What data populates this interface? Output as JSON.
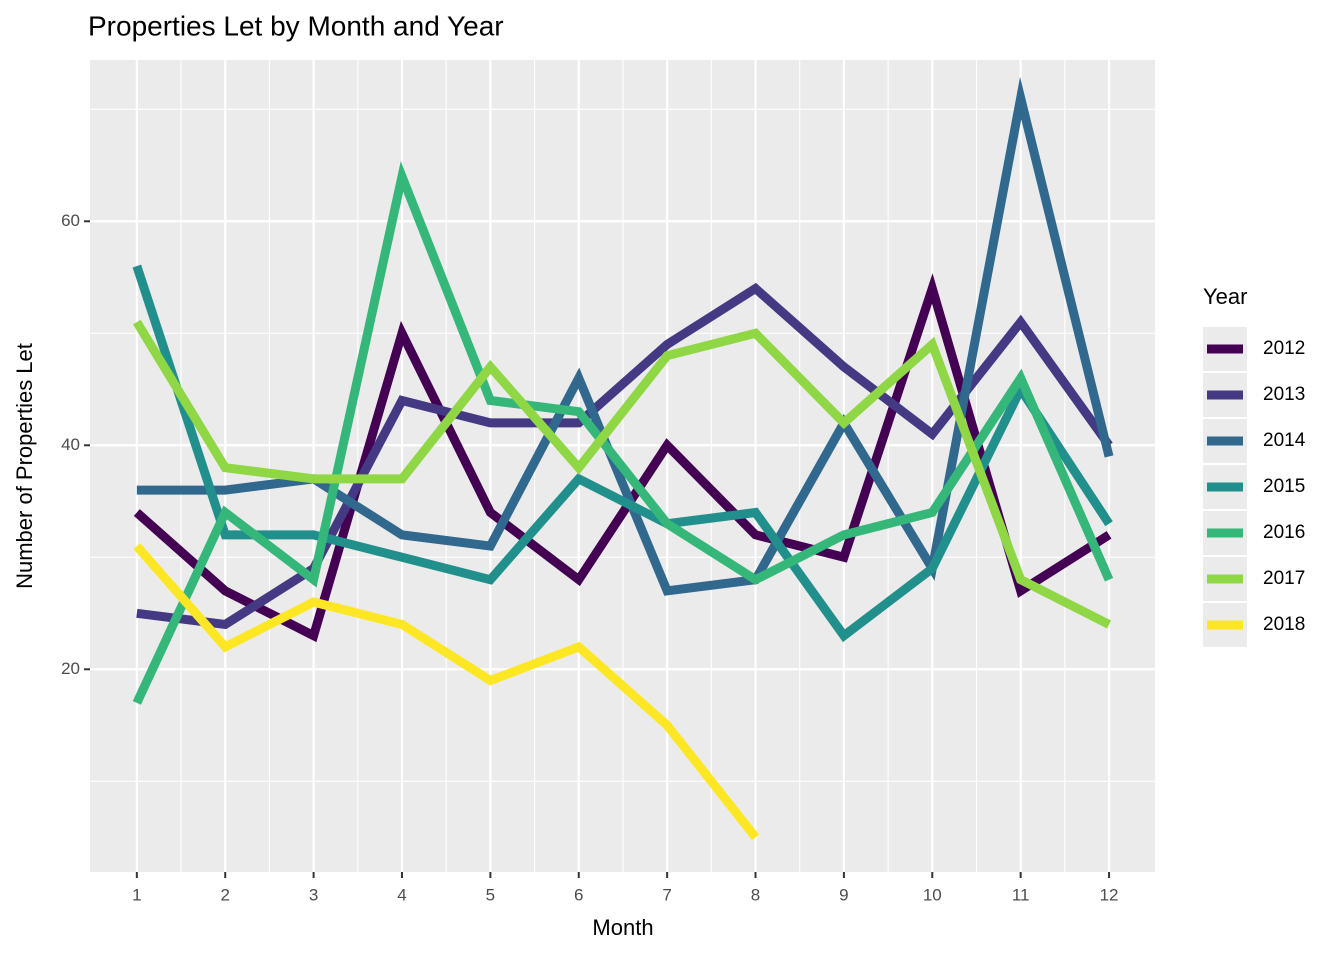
{
  "chart_data": {
    "type": "line",
    "title": "Properties Let by Month and Year",
    "x_label": "Month",
    "y_label": "Number of Properties Let",
    "legend_title": "Year",
    "legend_position": "right",
    "grid": true,
    "x": [
      1,
      2,
      3,
      4,
      5,
      6,
      7,
      8,
      9,
      10,
      11,
      12
    ],
    "xlim": [
      0.47,
      12.52
    ],
    "xticks": [
      1,
      2,
      3,
      4,
      5,
      6,
      7,
      8,
      9,
      10,
      11,
      12
    ],
    "xminor": [
      1.5,
      2.5,
      3.5,
      4.5,
      5.5,
      6.5,
      7.5,
      8.5,
      9.5,
      10.5,
      11.5
    ],
    "ylim": [
      1.9,
      74.4
    ],
    "yticks": [
      20,
      40,
      60
    ],
    "yminor": [
      10,
      30,
      50,
      70
    ],
    "series": [
      {
        "name": "2012",
        "color": "#440154",
        "values": [
          34,
          27,
          23,
          50,
          34,
          28,
          40,
          32,
          30,
          54,
          27,
          32
        ]
      },
      {
        "name": "2013",
        "color": "#443A83",
        "values": [
          25,
          24,
          29,
          44,
          42,
          42,
          49,
          54,
          47,
          41,
          51,
          40
        ]
      },
      {
        "name": "2014",
        "color": "#31688E",
        "values": [
          36,
          36,
          37,
          32,
          31,
          46,
          27,
          28,
          42,
          29,
          71,
          39
        ]
      },
      {
        "name": "2015",
        "color": "#21908C",
        "values": [
          56,
          32,
          32,
          30,
          28,
          37,
          33,
          34,
          23,
          29,
          45,
          33
        ]
      },
      {
        "name": "2016",
        "color": "#35B779",
        "values": [
          17,
          34,
          28,
          64,
          44,
          43,
          33,
          28,
          32,
          34,
          46,
          28
        ]
      },
      {
        "name": "2017",
        "color": "#8FD744",
        "values": [
          51,
          38,
          37,
          37,
          47,
          38,
          48,
          50,
          42,
          49,
          28,
          24
        ]
      },
      {
        "name": "2018",
        "color": "#FDE725",
        "values": [
          31,
          22,
          26,
          24,
          19,
          22,
          15,
          5,
          null,
          null,
          null,
          null
        ]
      }
    ]
  }
}
